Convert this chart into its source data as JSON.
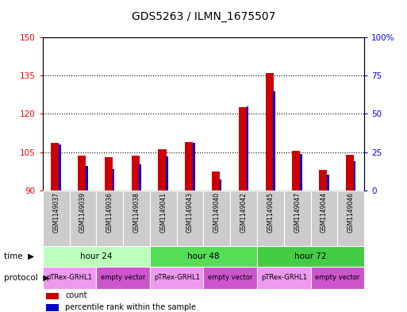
{
  "title": "GDS5263 / ILMN_1675507",
  "samples": [
    "GSM1149037",
    "GSM1149039",
    "GSM1149036",
    "GSM1149038",
    "GSM1149041",
    "GSM1149043",
    "GSM1149040",
    "GSM1149042",
    "GSM1149045",
    "GSM1149047",
    "GSM1149044",
    "GSM1149046"
  ],
  "count_values": [
    108.5,
    103.5,
    103.0,
    103.5,
    106.0,
    109.0,
    97.5,
    122.5,
    136.0,
    105.5,
    98.0,
    104.0
  ],
  "percentile_values": [
    30,
    16,
    14,
    17,
    22,
    31,
    7,
    55,
    65,
    24,
    10,
    19
  ],
  "ylim_left": [
    90,
    150
  ],
  "ylim_right": [
    0,
    100
  ],
  "yticks_left": [
    90,
    105,
    120,
    135,
    150
  ],
  "yticks_right": [
    0,
    25,
    50,
    75,
    100
  ],
  "red_color": "#cc0000",
  "blue_color": "#0000cc",
  "time_groups": [
    {
      "label": "hour 24",
      "start": 0,
      "end": 4,
      "color": "#bbffbb"
    },
    {
      "label": "hour 48",
      "start": 4,
      "end": 8,
      "color": "#55dd55"
    },
    {
      "label": "hour 72",
      "start": 8,
      "end": 12,
      "color": "#44cc44"
    }
  ],
  "protocol_groups": [
    {
      "label": "pTRex-GRHL1",
      "start": 0,
      "end": 2,
      "color": "#ee99ee"
    },
    {
      "label": "empty vector",
      "start": 2,
      "end": 4,
      "color": "#cc55cc"
    },
    {
      "label": "pTRex-GRHL1",
      "start": 4,
      "end": 6,
      "color": "#ee99ee"
    },
    {
      "label": "empty vector",
      "start": 6,
      "end": 8,
      "color": "#cc55cc"
    },
    {
      "label": "pTRex-GRHL1",
      "start": 8,
      "end": 10,
      "color": "#ee99ee"
    },
    {
      "label": "empty vector",
      "start": 10,
      "end": 12,
      "color": "#cc55cc"
    }
  ],
  "sample_box_color": "#cccccc",
  "bg_color": "#ffffff"
}
